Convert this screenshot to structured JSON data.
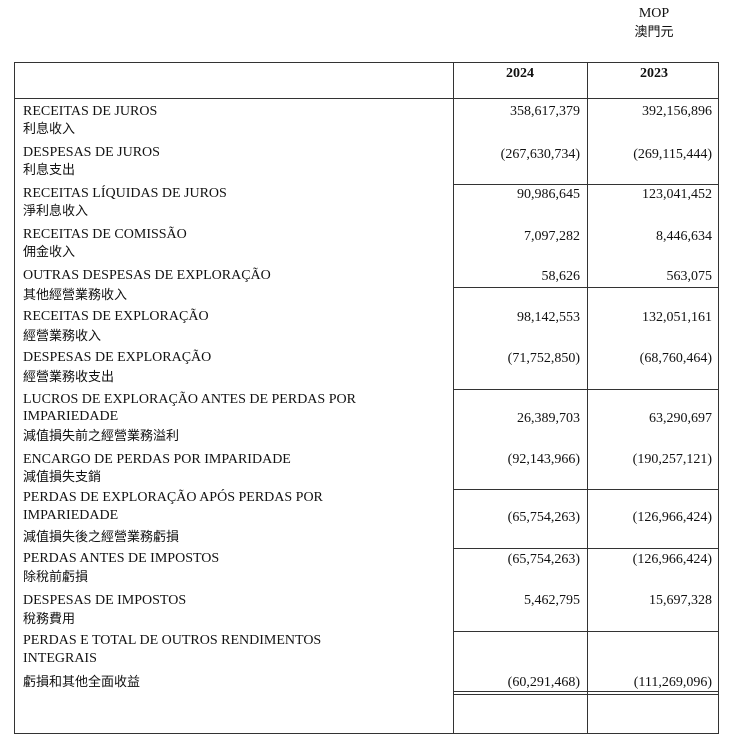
{
  "header": {
    "currency": "MOP",
    "currency_zh": "澳門元"
  },
  "table": {
    "columns": [
      "2024",
      "2023"
    ],
    "rows": [
      {
        "label": [
          "RECEITAS DE JUROS"
        ],
        "label_zh": "利息收入",
        "values": [
          "358,617,379",
          "392,156,896"
        ]
      },
      {
        "label": [
          "DESPESAS DE JUROS"
        ],
        "label_zh": "利息支出",
        "values": [
          "(267,630,734)",
          "(269,115,444)"
        ]
      },
      {
        "label": [
          "RECEITAS LÍQUIDAS DE JUROS"
        ],
        "label_zh": "淨利息收入",
        "values": [
          "90,986,645",
          "123,041,452"
        ]
      },
      {
        "label": [
          "RECEITAS DE COMISSÃO"
        ],
        "label_zh": "佣金收入",
        "values": [
          "7,097,282",
          "8,446,634"
        ]
      },
      {
        "label": [
          "OUTRAS DESPESAS DE EXPLORAÇÃO"
        ],
        "label_zh": "其他經營業務收入",
        "values": [
          "58,626",
          "563,075"
        ]
      },
      {
        "label": [
          "RECEITAS DE EXPLORAÇÃO"
        ],
        "label_zh": "經營業務收入",
        "values": [
          "98,142,553",
          "132,051,161"
        ]
      },
      {
        "label": [
          "DESPESAS DE EXPLORAÇÃO"
        ],
        "label_zh": "經營業務收支出",
        "values": [
          "(71,752,850)",
          "(68,760,464)"
        ]
      },
      {
        "label": [
          "LUCROS DE EXPLORAÇÃO ANTES DE PERDAS POR",
          "IMPARIEDADE"
        ],
        "label_zh": "減值損失前之經營業務溢利",
        "values": [
          "26,389,703",
          "63,290,697"
        ]
      },
      {
        "label": [
          "ENCARGO DE PERDAS POR IMPARIDADE"
        ],
        "label_zh": "減值損失支銷",
        "values": [
          "(92,143,966)",
          "(190,257,121)"
        ]
      },
      {
        "label": [
          "PERDAS DE EXPLORAÇÃO APÓS PERDAS POR",
          "IMPARIEDADE"
        ],
        "label_zh": "減值損失後之經營業務虧損",
        "values": [
          "(65,754,263)",
          "(126,966,424)"
        ]
      },
      {
        "label": [
          "PERDAS ANTES DE IMPOSTOS"
        ],
        "label_zh": "除稅前虧損",
        "values": [
          "(65,754,263)",
          "(126,966,424)"
        ]
      },
      {
        "label": [
          "DESPESAS DE IMPOSTOS"
        ],
        "label_zh": "稅務費用",
        "values": [
          "5,462,795",
          "15,697,328"
        ]
      },
      {
        "label": [
          "PERDAS E TOTAL DE OUTROS RENDIMENTOS",
          "INTEGRAIS"
        ],
        "label_zh": "虧損和其他全面收益",
        "values": [
          "(60,291,468)",
          "(111,269,096)"
        ]
      }
    ]
  }
}
